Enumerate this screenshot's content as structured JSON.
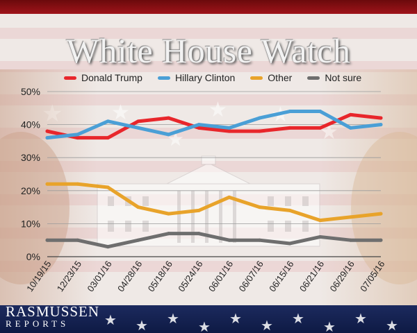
{
  "header": {
    "title": "White House Watch"
  },
  "logo": {
    "top": "RASMUSSEN",
    "bottom": "REPORTS"
  },
  "colors": {
    "trump": "#e8262b",
    "clinton": "#4a9fd6",
    "other": "#e8a32a",
    "not_sure": "#6e6e6e"
  },
  "chart_data": {
    "type": "line",
    "title": "White House Watch",
    "xlabel": "",
    "ylabel": "",
    "ylim": [
      0,
      50
    ],
    "y_ticks": [
      "0%",
      "10%",
      "20%",
      "30%",
      "40%",
      "50%"
    ],
    "grid": true,
    "legend_position": "top",
    "categories": [
      "10/19/15",
      "12/23/15",
      "03/01/16",
      "04/28/16",
      "05/18/16",
      "05/24/16",
      "06/01/16",
      "06/07/16",
      "06/15/16",
      "06/21/16",
      "06/29/16",
      "07/05/16"
    ],
    "series": [
      {
        "name": "Donald Trump",
        "color_key": "trump",
        "values": [
          38,
          36,
          36,
          41,
          42,
          39,
          38,
          38,
          39,
          39,
          43,
          42
        ]
      },
      {
        "name": "Hillary Clinton",
        "color_key": "clinton",
        "values": [
          36,
          37,
          41,
          39,
          37,
          40,
          39,
          42,
          44,
          44,
          39,
          40
        ]
      },
      {
        "name": "Other",
        "color_key": "other",
        "values": [
          22,
          22,
          21,
          15,
          13,
          14,
          18,
          15,
          14,
          11,
          12,
          13
        ]
      },
      {
        "name": "Not sure",
        "color_key": "not_sure",
        "values": [
          5,
          5,
          3,
          5,
          7,
          7,
          5,
          5,
          4,
          6,
          5,
          5
        ]
      }
    ]
  }
}
